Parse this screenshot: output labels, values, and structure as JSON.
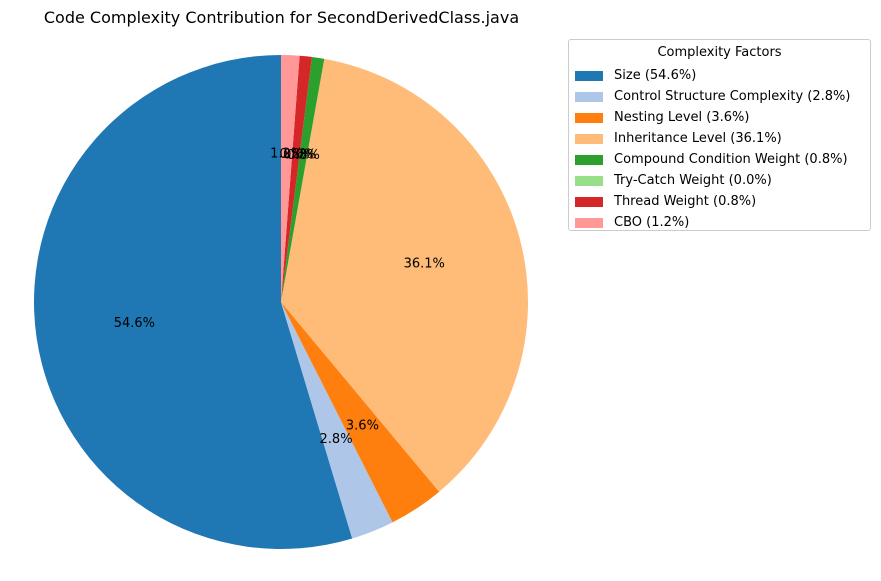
{
  "chart_data": {
    "type": "pie",
    "title": "Code Complexity Contribution for SecondDerivedClass.java",
    "legend_title": "Complexity Factors",
    "legend_placement": "right",
    "start_angle_deg": 90,
    "direction": "counterclockwise",
    "slices": [
      {
        "label": "Size",
        "legend": "Size (54.6%)",
        "value": 54.6,
        "pct_label": "54.6%",
        "color": "#1f77b4"
      },
      {
        "label": "Control Structure Complexity",
        "legend": "Control Structure Complexity (2.8%)",
        "value": 2.8,
        "pct_label": "2.8%",
        "color": "#aec7e8"
      },
      {
        "label": "Nesting Level",
        "legend": "Nesting Level (3.6%)",
        "value": 3.6,
        "pct_label": "3.6%",
        "color": "#ff7f0e"
      },
      {
        "label": "Inheritance Level",
        "legend": "Inheritance Level (36.1%)",
        "value": 36.1,
        "pct_label": "36.1%",
        "color": "#ffbb78"
      },
      {
        "label": "Compound Condition Weight",
        "legend": "Compound Condition Weight (0.8%)",
        "value": 0.8,
        "pct_label": "0.8%",
        "color": "#2ca02c"
      },
      {
        "label": "Try-Catch Weight",
        "legend": "Try-Catch Weight (0.0%)",
        "value": 0.0,
        "pct_label": "0.0%",
        "color": "#98df8a"
      },
      {
        "label": "Thread Weight",
        "legend": "Thread Weight (0.8%)",
        "value": 0.8,
        "pct_label": "0.8%",
        "color": "#d62728"
      },
      {
        "label": "CBO",
        "legend": "CBO (1.2%)",
        "value": 1.2,
        "pct_label": "1.2%",
        "color": "#ff9896"
      }
    ]
  }
}
